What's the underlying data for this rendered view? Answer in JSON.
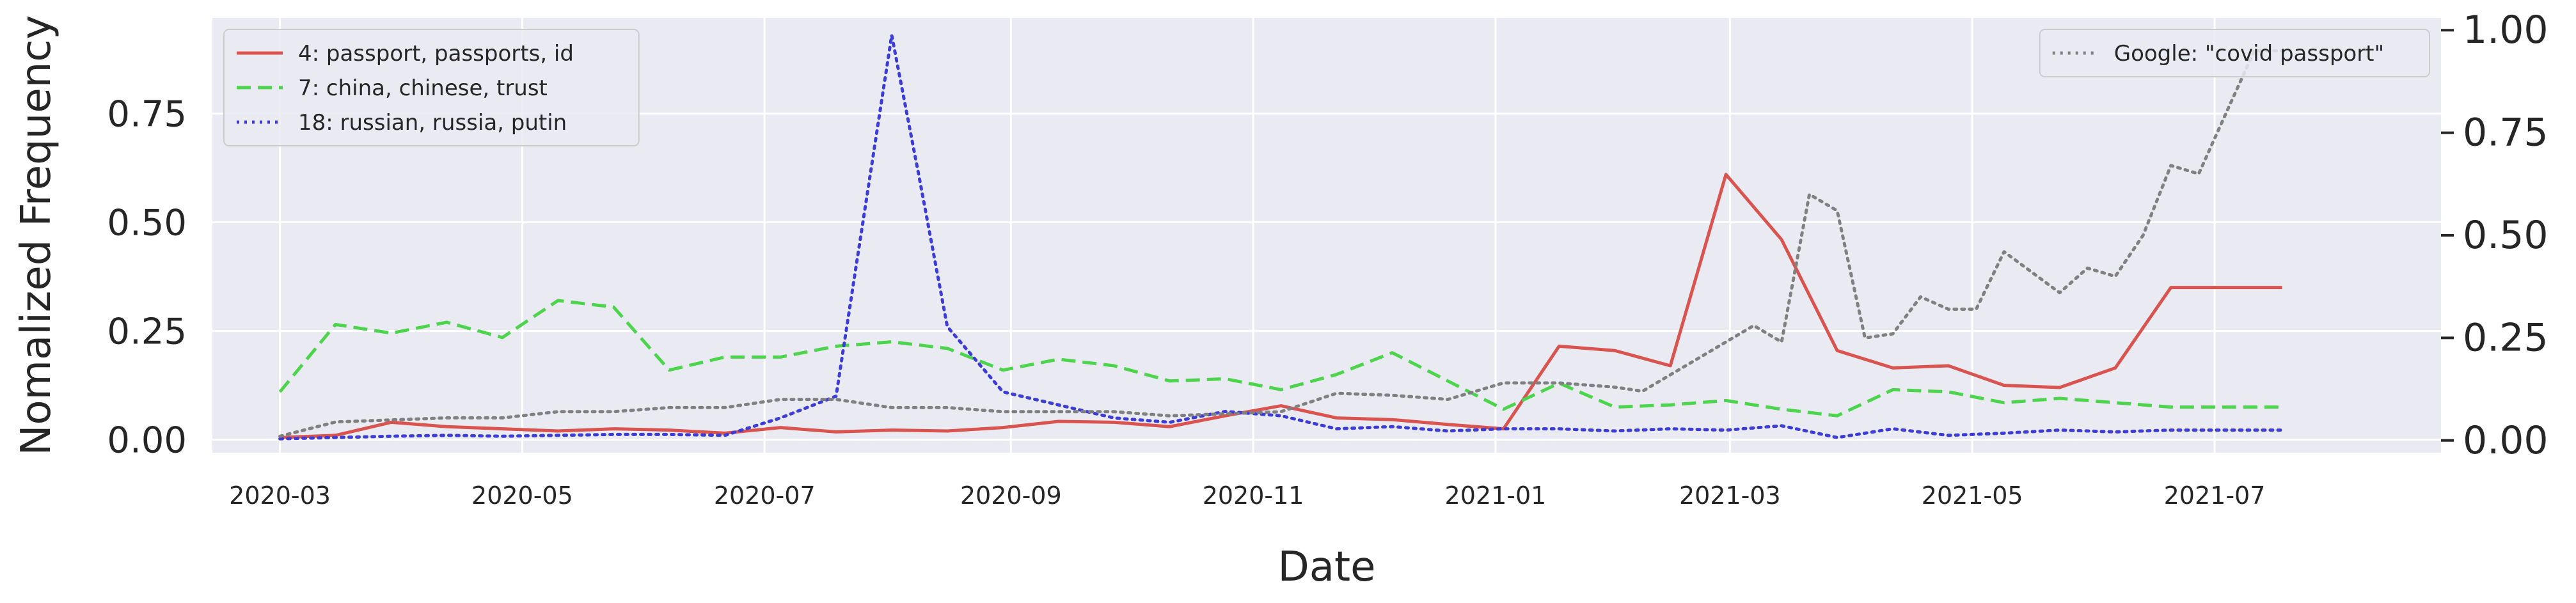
{
  "chart_data": {
    "type": "line",
    "xlabel": "Date",
    "ylabel": "Nomalized Frequency",
    "ylabel_right": "",
    "x_axis_type": "date",
    "xlim": [
      "2020-02-13",
      "2021-08-27"
    ],
    "ylim_left": [
      -0.03,
      0.97
    ],
    "ylim_right": [
      -0.03,
      1.03
    ],
    "grid": true,
    "x_ticks": [
      "2020-03",
      "2020-05",
      "2020-07",
      "2020-09",
      "2020-11",
      "2021-01",
      "2021-03",
      "2021-05",
      "2021-07"
    ],
    "x_tick_dates": [
      "2020-03-01",
      "2020-05-01",
      "2020-07-01",
      "2020-09-01",
      "2020-11-01",
      "2021-01-01",
      "2021-03-01",
      "2021-05-01",
      "2021-07-01"
    ],
    "y_ticks_left": [
      "0.00",
      "0.25",
      "0.50",
      "0.75"
    ],
    "y_tick_values_left": [
      0,
      0.25,
      0.5,
      0.75
    ],
    "y_ticks_right": [
      "0.00",
      "0.25",
      "0.50",
      "0.75",
      "1.00"
    ],
    "y_tick_values_right": [
      0,
      0.25,
      0.5,
      0.75,
      1.0
    ],
    "legend_left_placement": "top-left",
    "legend_right_placement": "top-right",
    "series": [
      {
        "name": "4: passport, passports, id",
        "axis": "left",
        "color": "#d9534f",
        "style": "solid",
        "x": [
          "2020-03-01",
          "2020-03-15",
          "2020-03-29",
          "2020-04-12",
          "2020-04-26",
          "2020-05-10",
          "2020-05-24",
          "2020-06-07",
          "2020-06-21",
          "2020-07-05",
          "2020-07-19",
          "2020-08-02",
          "2020-08-16",
          "2020-08-30",
          "2020-09-13",
          "2020-09-27",
          "2020-10-11",
          "2020-10-25",
          "2020-11-08",
          "2020-11-22",
          "2020-12-06",
          "2020-12-20",
          "2021-01-03",
          "2021-01-17",
          "2021-01-31",
          "2021-02-14",
          "2021-02-28",
          "2021-03-14",
          "2021-03-28",
          "2021-04-11",
          "2021-04-25",
          "2021-05-09",
          "2021-05-23",
          "2021-06-06",
          "2021-06-20",
          "2021-07-04",
          "2021-07-18"
        ],
        "values": [
          0.005,
          0.01,
          0.04,
          0.03,
          0.025,
          0.02,
          0.025,
          0.022,
          0.015,
          0.028,
          0.018,
          0.022,
          0.02,
          0.028,
          0.042,
          0.04,
          0.03,
          0.055,
          0.078,
          0.05,
          0.046,
          0.035,
          0.025,
          0.215,
          0.205,
          0.17,
          0.61,
          0.46,
          0.205,
          0.165,
          0.17,
          0.125,
          0.12,
          0.165,
          0.35,
          0.35,
          0.35
        ]
      },
      {
        "name": "7: china, chinese, trust",
        "axis": "left",
        "color": "#4cd44c",
        "style": "dashed",
        "x": [
          "2020-03-01",
          "2020-03-15",
          "2020-03-29",
          "2020-04-12",
          "2020-04-26",
          "2020-05-10",
          "2020-05-24",
          "2020-06-07",
          "2020-06-21",
          "2020-07-05",
          "2020-07-19",
          "2020-08-02",
          "2020-08-16",
          "2020-08-30",
          "2020-09-13",
          "2020-09-27",
          "2020-10-11",
          "2020-10-25",
          "2020-11-08",
          "2020-11-22",
          "2020-12-06",
          "2020-12-20",
          "2021-01-03",
          "2021-01-17",
          "2021-01-31",
          "2021-02-14",
          "2021-02-28",
          "2021-03-14",
          "2021-03-28",
          "2021-04-11",
          "2021-04-25",
          "2021-05-09",
          "2021-05-23",
          "2021-06-06",
          "2021-06-20",
          "2021-07-04",
          "2021-07-18"
        ],
        "values": [
          0.11,
          0.265,
          0.245,
          0.27,
          0.235,
          0.32,
          0.305,
          0.16,
          0.19,
          0.19,
          0.215,
          0.225,
          0.21,
          0.16,
          0.185,
          0.17,
          0.135,
          0.14,
          0.115,
          0.15,
          0.2,
          0.135,
          0.07,
          0.13,
          0.075,
          0.08,
          0.09,
          0.07,
          0.055,
          0.115,
          0.11,
          0.085,
          0.095,
          0.085,
          0.075,
          0.075,
          0.075
        ]
      },
      {
        "name": "18: russian, russia, putin",
        "axis": "left",
        "color": "#3c3cd6",
        "style": "dotted",
        "x": [
          "2020-03-01",
          "2020-03-15",
          "2020-03-29",
          "2020-04-12",
          "2020-04-26",
          "2020-05-10",
          "2020-05-24",
          "2020-06-07",
          "2020-06-21",
          "2020-07-05",
          "2020-07-19",
          "2020-08-02",
          "2020-08-09",
          "2020-08-16",
          "2020-08-30",
          "2020-09-13",
          "2020-09-27",
          "2020-10-11",
          "2020-10-25",
          "2020-11-08",
          "2020-11-22",
          "2020-12-06",
          "2020-12-20",
          "2021-01-03",
          "2021-01-17",
          "2021-01-31",
          "2021-02-14",
          "2021-02-28",
          "2021-03-14",
          "2021-03-28",
          "2021-04-11",
          "2021-04-25",
          "2021-05-09",
          "2021-05-23",
          "2021-06-06",
          "2021-06-20",
          "2021-07-04",
          "2021-07-18"
        ],
        "values": [
          0.002,
          0.005,
          0.008,
          0.01,
          0.008,
          0.01,
          0.012,
          0.012,
          0.01,
          0.05,
          0.1,
          0.93,
          0.6,
          0.26,
          0.11,
          0.08,
          0.05,
          0.04,
          0.065,
          0.055,
          0.025,
          0.03,
          0.02,
          0.025,
          0.025,
          0.02,
          0.025,
          0.022,
          0.032,
          0.005,
          0.025,
          0.01,
          0.015,
          0.022,
          0.018,
          0.022,
          0.022,
          0.022
        ]
      },
      {
        "name": "Google: \"covid passport\"",
        "axis": "right",
        "color": "#808080",
        "style": "dotted",
        "x": [
          "2020-03-01",
          "2020-03-15",
          "2020-03-29",
          "2020-04-12",
          "2020-04-26",
          "2020-05-10",
          "2020-05-24",
          "2020-06-07",
          "2020-06-21",
          "2020-07-05",
          "2020-07-19",
          "2020-08-02",
          "2020-08-16",
          "2020-08-30",
          "2020-09-13",
          "2020-09-27",
          "2020-10-11",
          "2020-10-25",
          "2020-11-08",
          "2020-11-22",
          "2020-12-06",
          "2020-12-20",
          "2021-01-03",
          "2021-01-17",
          "2021-01-31",
          "2021-02-07",
          "2021-02-14",
          "2021-02-21",
          "2021-02-28",
          "2021-03-07",
          "2021-03-14",
          "2021-03-21",
          "2021-03-28",
          "2021-04-04",
          "2021-04-11",
          "2021-04-18",
          "2021-04-25",
          "2021-05-02",
          "2021-05-09",
          "2021-05-16",
          "2021-05-23",
          "2021-05-30",
          "2021-06-06",
          "2021-06-13",
          "2021-06-20",
          "2021-06-27",
          "2021-07-04",
          "2021-07-11",
          "2021-07-18"
        ],
        "values": [
          0.01,
          0.045,
          0.05,
          0.055,
          0.055,
          0.07,
          0.07,
          0.08,
          0.08,
          0.1,
          0.1,
          0.08,
          0.08,
          0.07,
          0.07,
          0.07,
          0.06,
          0.065,
          0.07,
          0.115,
          0.11,
          0.1,
          0.14,
          0.14,
          0.13,
          0.12,
          0.16,
          0.2,
          0.24,
          0.28,
          0.24,
          0.6,
          0.56,
          0.25,
          0.26,
          0.35,
          0.32,
          0.32,
          0.46,
          0.41,
          0.36,
          0.42,
          0.4,
          0.5,
          0.67,
          0.65,
          0.8,
          0.95,
          0.95
        ]
      }
    ]
  }
}
